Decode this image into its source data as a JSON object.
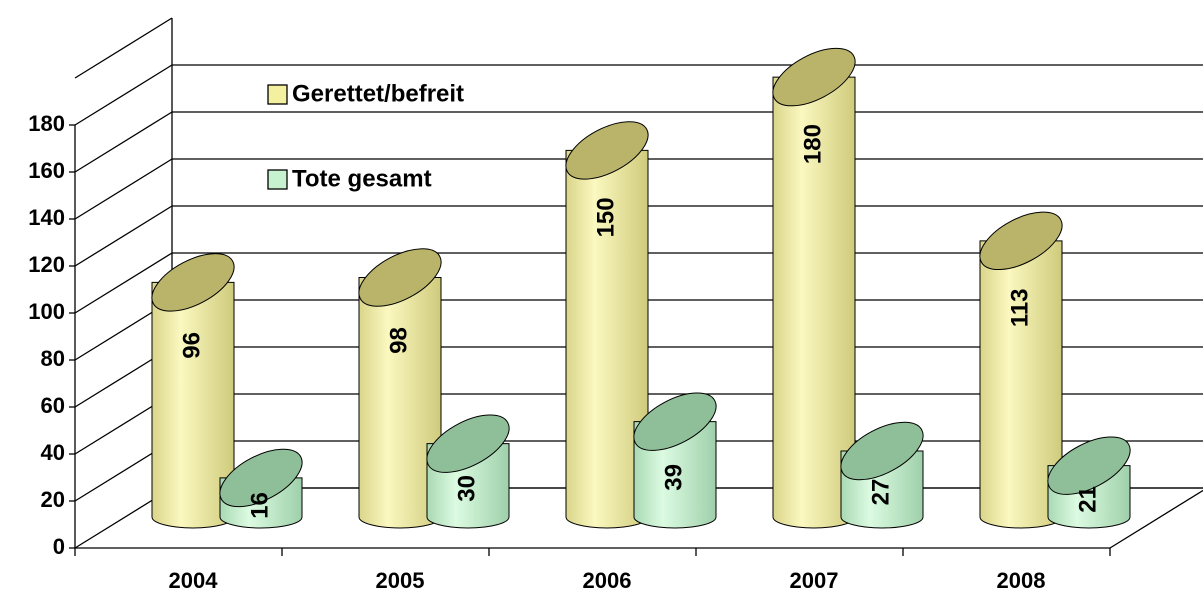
{
  "chart_data": {
    "type": "bar3d",
    "categories": [
      "2004",
      "2005",
      "2006",
      "2007",
      "2008"
    ],
    "series": [
      {
        "name": "Gerettet/befreit",
        "color": "#f3f0a0",
        "values": [
          96,
          98,
          150,
          180,
          113
        ]
      },
      {
        "name": "Tote gesamt",
        "color": "#c6f2cf",
        "values": [
          16,
          30,
          39,
          27,
          21
        ]
      }
    ],
    "ylim": [
      0,
      200
    ],
    "yticks": [
      0,
      20,
      40,
      60,
      80,
      100,
      120,
      140,
      160,
      180
    ],
    "grid": true,
    "legend": "top-left"
  }
}
